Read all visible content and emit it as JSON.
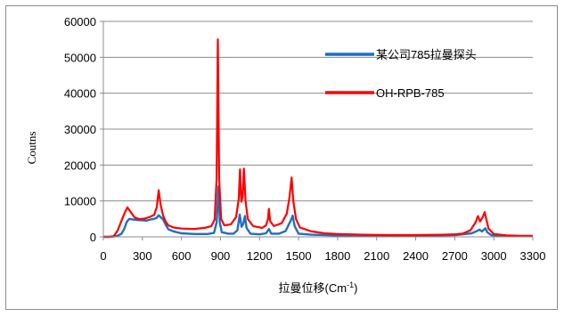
{
  "chart_data": {
    "type": "line",
    "title": "",
    "xlabel": "拉曼位移(Cm",
    "xlabel_sup": "-1",
    "xlabel_close": ")",
    "ylabel": "Coutns",
    "xlim": [
      0,
      3300
    ],
    "ylim": [
      0,
      60000
    ],
    "x_ticks": [
      0,
      300,
      600,
      900,
      1200,
      1500,
      1800,
      2100,
      2400,
      2700,
      3000,
      3300
    ],
    "y_ticks": [
      0,
      10000,
      20000,
      30000,
      40000,
      50000,
      60000
    ],
    "grid": "horizontal",
    "legend_position": "top-right",
    "series": [
      {
        "name": "某公司785拉曼探头",
        "color": "#1f6fc0",
        "points": [
          [
            0,
            0
          ],
          [
            60,
            0
          ],
          [
            110,
            300
          ],
          [
            140,
            900
          ],
          [
            160,
            2200
          ],
          [
            180,
            4200
          ],
          [
            200,
            5000
          ],
          [
            230,
            4800
          ],
          [
            260,
            4700
          ],
          [
            300,
            4600
          ],
          [
            330,
            4500
          ],
          [
            360,
            4800
          ],
          [
            390,
            5000
          ],
          [
            410,
            5300
          ],
          [
            425,
            6000
          ],
          [
            440,
            5500
          ],
          [
            460,
            4800
          ],
          [
            480,
            3300
          ],
          [
            500,
            2100
          ],
          [
            540,
            1500
          ],
          [
            600,
            1000
          ],
          [
            700,
            800
          ],
          [
            800,
            800
          ],
          [
            850,
            1100
          ],
          [
            870,
            4000
          ],
          [
            885,
            14000
          ],
          [
            895,
            4000
          ],
          [
            910,
            1300
          ],
          [
            960,
            900
          ],
          [
            1000,
            900
          ],
          [
            1030,
            1800
          ],
          [
            1048,
            6200
          ],
          [
            1062,
            2800
          ],
          [
            1075,
            3600
          ],
          [
            1088,
            5800
          ],
          [
            1100,
            2500
          ],
          [
            1130,
            900
          ],
          [
            1200,
            700
          ],
          [
            1250,
            1000
          ],
          [
            1272,
            2200
          ],
          [
            1290,
            900
          ],
          [
            1350,
            900
          ],
          [
            1400,
            1600
          ],
          [
            1440,
            4500
          ],
          [
            1455,
            5900
          ],
          [
            1470,
            3000
          ],
          [
            1500,
            900
          ],
          [
            1600,
            600
          ],
          [
            1800,
            400
          ],
          [
            2100,
            300
          ],
          [
            2400,
            300
          ],
          [
            2700,
            500
          ],
          [
            2830,
            1000
          ],
          [
            2870,
            1600
          ],
          [
            2890,
            2000
          ],
          [
            2910,
            1500
          ],
          [
            2935,
            2400
          ],
          [
            2950,
            1300
          ],
          [
            2980,
            500
          ],
          [
            3050,
            300
          ],
          [
            3200,
            200
          ],
          [
            3300,
            200
          ]
        ]
      },
      {
        "name": "OH-RPB-785",
        "color": "#ff0000",
        "points": [
          [
            0,
            0
          ],
          [
            40,
            0
          ],
          [
            80,
            200
          ],
          [
            110,
            1800
          ],
          [
            140,
            4500
          ],
          [
            165,
            6800
          ],
          [
            185,
            8200
          ],
          [
            210,
            6900
          ],
          [
            240,
            5400
          ],
          [
            280,
            4900
          ],
          [
            320,
            5100
          ],
          [
            360,
            5600
          ],
          [
            390,
            6100
          ],
          [
            410,
            8200
          ],
          [
            425,
            13000
          ],
          [
            440,
            8900
          ],
          [
            460,
            5800
          ],
          [
            480,
            4200
          ],
          [
            500,
            3200
          ],
          [
            540,
            2600
          ],
          [
            600,
            2300
          ],
          [
            700,
            2200
          ],
          [
            780,
            2500
          ],
          [
            830,
            3000
          ],
          [
            855,
            4800
          ],
          [
            870,
            16000
          ],
          [
            880,
            55000
          ],
          [
            890,
            16000
          ],
          [
            905,
            5000
          ],
          [
            930,
            3200
          ],
          [
            980,
            3500
          ],
          [
            1020,
            5500
          ],
          [
            1040,
            10500
          ],
          [
            1050,
            18800
          ],
          [
            1060,
            9800
          ],
          [
            1070,
            11000
          ],
          [
            1080,
            19000
          ],
          [
            1093,
            10000
          ],
          [
            1110,
            5000
          ],
          [
            1150,
            3000
          ],
          [
            1220,
            2500
          ],
          [
            1250,
            3200
          ],
          [
            1265,
            5000
          ],
          [
            1272,
            7800
          ],
          [
            1282,
            4400
          ],
          [
            1310,
            3000
          ],
          [
            1370,
            3800
          ],
          [
            1410,
            6500
          ],
          [
            1430,
            11000
          ],
          [
            1447,
            16500
          ],
          [
            1460,
            10000
          ],
          [
            1480,
            5000
          ],
          [
            1510,
            2600
          ],
          [
            1600,
            1500
          ],
          [
            1700,
            1000
          ],
          [
            1800,
            800
          ],
          [
            2000,
            600
          ],
          [
            2200,
            500
          ],
          [
            2400,
            500
          ],
          [
            2600,
            600
          ],
          [
            2700,
            700
          ],
          [
            2760,
            900
          ],
          [
            2820,
            1800
          ],
          [
            2860,
            4000
          ],
          [
            2878,
            5800
          ],
          [
            2895,
            4300
          ],
          [
            2915,
            5500
          ],
          [
            2930,
            6900
          ],
          [
            2942,
            5000
          ],
          [
            2960,
            2300
          ],
          [
            3000,
            800
          ],
          [
            3100,
            400
          ],
          [
            3200,
            300
          ],
          [
            3300,
            300
          ]
        ]
      }
    ]
  }
}
